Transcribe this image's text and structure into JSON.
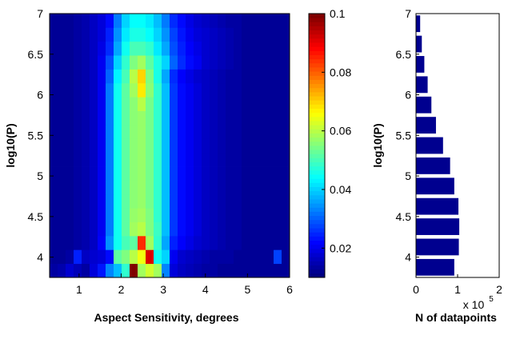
{
  "chart_data": [
    {
      "type": "heatmap",
      "xlabel": "Aspect Sensitivity, degrees",
      "ylabel": "log10(P)",
      "xlim": [
        0.3,
        6.0
      ],
      "ylim": [
        3.75,
        7.0
      ],
      "x_ticks": [
        "1",
        "2",
        "3",
        "4",
        "5",
        "6"
      ],
      "y_ticks": [
        "4",
        "4.5",
        "5",
        "5.5",
        "6",
        "6.5",
        "7"
      ],
      "colorbar": {
        "colormap": "jet",
        "range": [
          0.01,
          0.1
        ],
        "ticks": [
          "0.02",
          "0.04",
          "0.06",
          "0.08",
          "0.1"
        ]
      },
      "grid_x_bins": 30,
      "grid_y_bins": 19,
      "values": [
        [
          0.013,
          0.014,
          0.017,
          0.015,
          0.013,
          0.018,
          0.023,
          0.033,
          0.038,
          0.048,
          0.1,
          0.058,
          0.062,
          0.058,
          0.033,
          0.018,
          0.016,
          0.015,
          0.014,
          0.013,
          0.013,
          0.012,
          0.012,
          0.012,
          0.012,
          0.012,
          0.012,
          0.012,
          0.012,
          0.012
        ],
        [
          0.012,
          0.012,
          0.013,
          0.024,
          0.016,
          0.017,
          0.018,
          0.022,
          0.052,
          0.055,
          0.06,
          0.065,
          0.092,
          0.045,
          0.04,
          0.02,
          0.017,
          0.016,
          0.015,
          0.014,
          0.013,
          0.013,
          0.013,
          0.012,
          0.012,
          0.012,
          0.012,
          0.012,
          0.027,
          0.012
        ],
        [
          0.012,
          0.012,
          0.012,
          0.013,
          0.014,
          0.016,
          0.021,
          0.034,
          0.045,
          0.05,
          0.052,
          0.085,
          0.058,
          0.048,
          0.036,
          0.024,
          0.021,
          0.019,
          0.017,
          0.016,
          0.015,
          0.014,
          0.013,
          0.013,
          0.012,
          0.012,
          0.012,
          0.012,
          0.012,
          0.012
        ],
        [
          0.012,
          0.012,
          0.012,
          0.013,
          0.014,
          0.016,
          0.02,
          0.032,
          0.045,
          0.052,
          0.058,
          0.06,
          0.055,
          0.049,
          0.038,
          0.026,
          0.022,
          0.02,
          0.018,
          0.016,
          0.015,
          0.014,
          0.013,
          0.013,
          0.012,
          0.012,
          0.012,
          0.012,
          0.012,
          0.012
        ],
        [
          0.012,
          0.012,
          0.012,
          0.013,
          0.014,
          0.016,
          0.02,
          0.032,
          0.045,
          0.052,
          0.057,
          0.058,
          0.055,
          0.048,
          0.038,
          0.026,
          0.022,
          0.02,
          0.018,
          0.016,
          0.015,
          0.014,
          0.013,
          0.013,
          0.012,
          0.012,
          0.012,
          0.012,
          0.012,
          0.012
        ],
        [
          0.012,
          0.012,
          0.012,
          0.013,
          0.014,
          0.016,
          0.02,
          0.032,
          0.045,
          0.052,
          0.056,
          0.057,
          0.054,
          0.048,
          0.038,
          0.026,
          0.022,
          0.02,
          0.018,
          0.016,
          0.015,
          0.014,
          0.013,
          0.013,
          0.012,
          0.012,
          0.012,
          0.012,
          0.012,
          0.012
        ],
        [
          0.012,
          0.012,
          0.012,
          0.013,
          0.014,
          0.016,
          0.02,
          0.032,
          0.045,
          0.052,
          0.056,
          0.057,
          0.054,
          0.048,
          0.038,
          0.026,
          0.022,
          0.02,
          0.018,
          0.016,
          0.015,
          0.014,
          0.013,
          0.013,
          0.012,
          0.012,
          0.012,
          0.012,
          0.012,
          0.012
        ],
        [
          0.012,
          0.012,
          0.012,
          0.013,
          0.014,
          0.016,
          0.02,
          0.032,
          0.045,
          0.052,
          0.056,
          0.057,
          0.054,
          0.048,
          0.038,
          0.026,
          0.022,
          0.02,
          0.018,
          0.016,
          0.015,
          0.014,
          0.013,
          0.013,
          0.012,
          0.012,
          0.012,
          0.012,
          0.012,
          0.012
        ],
        [
          0.012,
          0.012,
          0.012,
          0.013,
          0.014,
          0.016,
          0.02,
          0.032,
          0.045,
          0.052,
          0.056,
          0.057,
          0.054,
          0.048,
          0.038,
          0.026,
          0.022,
          0.02,
          0.018,
          0.016,
          0.015,
          0.014,
          0.013,
          0.013,
          0.012,
          0.012,
          0.012,
          0.012,
          0.012,
          0.012
        ],
        [
          0.012,
          0.012,
          0.012,
          0.013,
          0.014,
          0.016,
          0.02,
          0.032,
          0.045,
          0.052,
          0.056,
          0.057,
          0.054,
          0.048,
          0.038,
          0.026,
          0.022,
          0.02,
          0.018,
          0.016,
          0.015,
          0.014,
          0.013,
          0.013,
          0.012,
          0.012,
          0.012,
          0.012,
          0.012,
          0.012
        ],
        [
          0.012,
          0.012,
          0.012,
          0.013,
          0.014,
          0.016,
          0.02,
          0.032,
          0.045,
          0.052,
          0.056,
          0.057,
          0.054,
          0.048,
          0.038,
          0.026,
          0.022,
          0.02,
          0.018,
          0.016,
          0.015,
          0.014,
          0.013,
          0.013,
          0.012,
          0.012,
          0.012,
          0.012,
          0.012,
          0.012
        ],
        [
          0.012,
          0.012,
          0.012,
          0.013,
          0.014,
          0.016,
          0.02,
          0.032,
          0.045,
          0.052,
          0.056,
          0.057,
          0.054,
          0.048,
          0.038,
          0.026,
          0.022,
          0.02,
          0.018,
          0.016,
          0.015,
          0.014,
          0.013,
          0.013,
          0.012,
          0.012,
          0.012,
          0.012,
          0.012,
          0.012
        ],
        [
          0.012,
          0.012,
          0.012,
          0.013,
          0.014,
          0.016,
          0.02,
          0.032,
          0.045,
          0.052,
          0.056,
          0.06,
          0.054,
          0.048,
          0.038,
          0.026,
          0.022,
          0.02,
          0.018,
          0.016,
          0.015,
          0.014,
          0.013,
          0.013,
          0.012,
          0.012,
          0.012,
          0.012,
          0.012,
          0.012
        ],
        [
          0.012,
          0.012,
          0.012,
          0.013,
          0.014,
          0.016,
          0.02,
          0.032,
          0.045,
          0.052,
          0.058,
          0.068,
          0.056,
          0.048,
          0.038,
          0.026,
          0.022,
          0.02,
          0.018,
          0.016,
          0.015,
          0.014,
          0.013,
          0.013,
          0.012,
          0.012,
          0.012,
          0.012,
          0.012,
          0.012
        ],
        [
          0.012,
          0.012,
          0.012,
          0.013,
          0.014,
          0.016,
          0.02,
          0.03,
          0.043,
          0.05,
          0.06,
          0.07,
          0.055,
          0.046,
          0.036,
          0.025,
          0.021,
          0.019,
          0.017,
          0.016,
          0.015,
          0.014,
          0.013,
          0.013,
          0.012,
          0.012,
          0.012,
          0.012,
          0.012,
          0.012
        ],
        [
          0.012,
          0.012,
          0.012,
          0.013,
          0.014,
          0.016,
          0.02,
          0.028,
          0.04,
          0.048,
          0.055,
          0.058,
          0.052,
          0.046,
          0.04,
          0.03,
          0.025,
          0.022,
          0.02,
          0.017,
          0.016,
          0.015,
          0.014,
          0.013,
          0.012,
          0.012,
          0.012,
          0.012,
          0.012,
          0.012
        ],
        [
          0.012,
          0.012,
          0.012,
          0.013,
          0.014,
          0.016,
          0.019,
          0.025,
          0.036,
          0.045,
          0.05,
          0.05,
          0.048,
          0.042,
          0.036,
          0.028,
          0.024,
          0.021,
          0.019,
          0.017,
          0.016,
          0.015,
          0.014,
          0.013,
          0.012,
          0.012,
          0.012,
          0.012,
          0.012,
          0.012
        ],
        [
          0.012,
          0.012,
          0.012,
          0.013,
          0.014,
          0.016,
          0.018,
          0.024,
          0.034,
          0.042,
          0.046,
          0.046,
          0.044,
          0.04,
          0.034,
          0.027,
          0.023,
          0.02,
          0.018,
          0.017,
          0.016,
          0.015,
          0.014,
          0.013,
          0.012,
          0.012,
          0.012,
          0.012,
          0.012,
          0.012
        ],
        [
          0.012,
          0.012,
          0.012,
          0.013,
          0.014,
          0.016,
          0.018,
          0.022,
          0.032,
          0.04,
          0.044,
          0.044,
          0.042,
          0.038,
          0.032,
          0.025,
          0.022,
          0.019,
          0.017,
          0.016,
          0.015,
          0.014,
          0.013,
          0.013,
          0.012,
          0.012,
          0.012,
          0.012,
          0.012,
          0.012
        ]
      ]
    },
    {
      "type": "bar",
      "orientation": "horizontal",
      "xlabel": "N of datapoints",
      "ylabel": "log10(P)",
      "xlim": [
        0,
        200000
      ],
      "ylim": [
        3.75,
        7.0
      ],
      "x_ticks": [
        "0",
        "1",
        "2"
      ],
      "x_multiplier": "x 10",
      "x_multiplier_exp": "5",
      "y_ticks": [
        "4",
        "4.5",
        "5",
        "5.5",
        "6",
        "6.5",
        "7"
      ],
      "bar_color": "#00008f",
      "categories": [
        3.875,
        4.125,
        4.375,
        4.625,
        4.875,
        5.125,
        5.375,
        5.625,
        5.875,
        6.125,
        6.375,
        6.625,
        6.875
      ],
      "values": [
        92000,
        103000,
        104000,
        102000,
        92000,
        82000,
        65000,
        48000,
        37000,
        28000,
        20000,
        14000,
        10000
      ]
    }
  ]
}
